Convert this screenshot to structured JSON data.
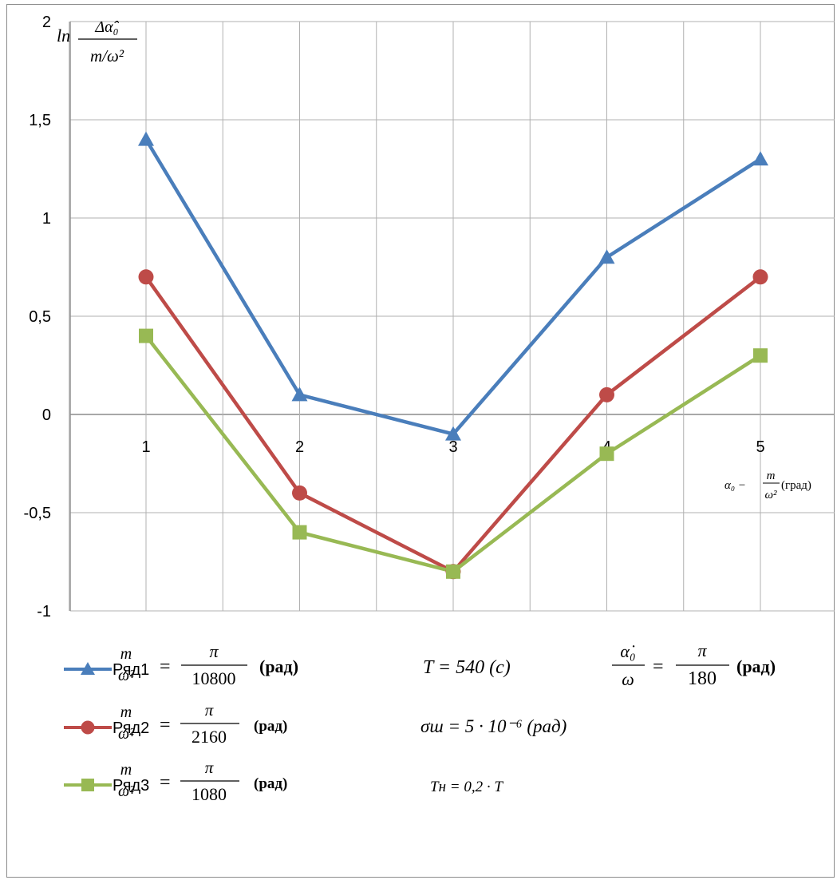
{
  "chart_data": {
    "type": "line",
    "x": [
      1,
      2,
      3,
      4,
      5
    ],
    "ylim": [
      -1,
      2
    ],
    "yticks": [
      -1,
      -0.5,
      0,
      0.5,
      1,
      1.5,
      2
    ],
    "ytick_labels": [
      "-1",
      "-0,5",
      "0",
      "0,5",
      "1",
      "1,5",
      "2"
    ],
    "xtick_labels": [
      "1",
      "2",
      "3",
      "4",
      "5"
    ],
    "grid": true,
    "legend_position": "bottom",
    "ylabel": {
      "prefix": "ln",
      "num": "Δα̂₀",
      "den": "m/ω²"
    },
    "xlabel": {
      "lhs": "α₀ −",
      "num": "m",
      "den": "ω²",
      "unit": "(град)"
    },
    "series": [
      {
        "name": "Ряд1",
        "color": "#4a7ebb",
        "marker": "triangle",
        "values": [
          1.4,
          0.1,
          -0.1,
          0.8,
          1.3
        ],
        "formula": {
          "num": "m",
          "den": "ω²",
          "eq": "=",
          "fnum": "π",
          "fden": "10800",
          "unit": "(рад)"
        }
      },
      {
        "name": "Ряд2",
        "color": "#be4b48",
        "marker": "circle",
        "values": [
          0.7,
          -0.4,
          -0.8,
          0.1,
          0.7
        ],
        "formula": {
          "num": "m",
          "den": "ω²",
          "eq": "=",
          "fnum": "π",
          "fden": "2160",
          "unit": "(рад)"
        }
      },
      {
        "name": "Ряд3",
        "color": "#98b954",
        "marker": "square",
        "values": [
          0.4,
          -0.6,
          -0.8,
          -0.2,
          0.3
        ],
        "formula": {
          "num": "m",
          "den": "ω²",
          "eq": "=",
          "fnum": "π",
          "fden": "1080",
          "unit": "(рад)"
        }
      }
    ],
    "annotations": {
      "period": "T = 540 (c)",
      "rate": {
        "num": "α̇₀",
        "den": "ω",
        "eq": "=",
        "fnum": "π",
        "fden": "180",
        "unit": "(рад)"
      },
      "sigma": "σш = 5 · 10⁻⁶ (рад)",
      "tn": "Tн = 0,2 · T"
    }
  }
}
